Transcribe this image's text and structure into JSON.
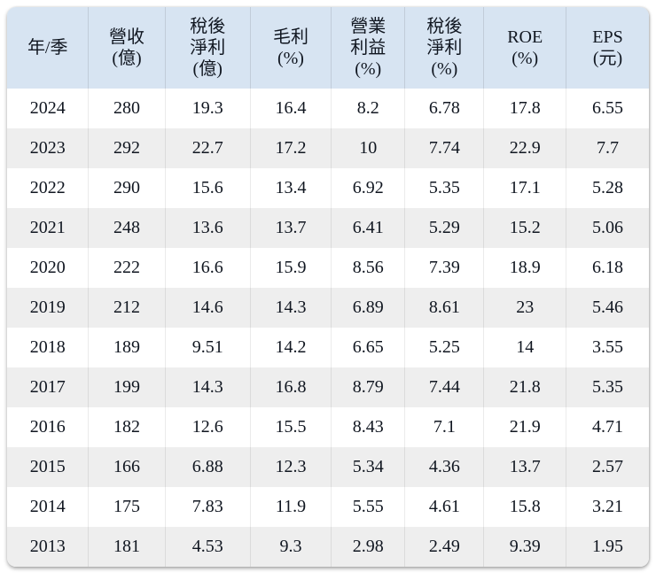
{
  "table": {
    "headers": [
      {
        "name": "year",
        "lines": [
          "年/季"
        ]
      },
      {
        "name": "revenue",
        "lines": [
          "營收",
          "(億)"
        ]
      },
      {
        "name": "net-income",
        "lines": [
          "稅後",
          "淨利",
          "(億)"
        ]
      },
      {
        "name": "gross-margin",
        "lines": [
          "毛利",
          "(%)"
        ]
      },
      {
        "name": "operating-margin",
        "lines": [
          "營業",
          "利益",
          "(%)"
        ]
      },
      {
        "name": "net-margin",
        "lines": [
          "稅後",
          "淨利",
          "(%)"
        ]
      },
      {
        "name": "roe",
        "lines": [
          "ROE",
          "(%)"
        ]
      },
      {
        "name": "eps",
        "lines": [
          "EPS",
          "(元)"
        ]
      }
    ],
    "rows": [
      [
        "2024",
        "280",
        "19.3",
        "16.4",
        "8.2",
        "6.78",
        "17.8",
        "6.55"
      ],
      [
        "2023",
        "292",
        "22.7",
        "17.2",
        "10",
        "7.74",
        "22.9",
        "7.7"
      ],
      [
        "2022",
        "290",
        "15.6",
        "13.4",
        "6.92",
        "5.35",
        "17.1",
        "5.28"
      ],
      [
        "2021",
        "248",
        "13.6",
        "13.7",
        "6.41",
        "5.29",
        "15.2",
        "5.06"
      ],
      [
        "2020",
        "222",
        "16.6",
        "15.9",
        "8.56",
        "7.39",
        "18.9",
        "6.18"
      ],
      [
        "2019",
        "212",
        "14.6",
        "14.3",
        "6.89",
        "8.61",
        "23",
        "5.46"
      ],
      [
        "2018",
        "189",
        "9.51",
        "14.2",
        "6.65",
        "5.25",
        "14",
        "3.55"
      ],
      [
        "2017",
        "199",
        "14.3",
        "16.8",
        "8.79",
        "7.44",
        "21.8",
        "5.35"
      ],
      [
        "2016",
        "182",
        "12.6",
        "15.5",
        "8.43",
        "7.1",
        "21.9",
        "4.71"
      ],
      [
        "2015",
        "166",
        "6.88",
        "12.3",
        "5.34",
        "4.36",
        "13.7",
        "2.57"
      ],
      [
        "2014",
        "175",
        "7.83",
        "11.9",
        "5.55",
        "4.61",
        "15.8",
        "3.21"
      ],
      [
        "2013",
        "181",
        "4.53",
        "9.3",
        "2.98",
        "2.49",
        "9.39",
        "1.95"
      ]
    ]
  },
  "colors": {
    "header_bg": "#d7e4f2",
    "row_alt_bg": "#eeeeee",
    "text": "#101620"
  },
  "chart_data": {
    "type": "table",
    "title": "Annual financial metrics by year",
    "columns": [
      "年/季",
      "營收(億)",
      "稅後淨利(億)",
      "毛利(%)",
      "營業利益(%)",
      "稅後淨利(%)",
      "ROE(%)",
      "EPS(元)"
    ],
    "rows": [
      [
        2024,
        280,
        19.3,
        16.4,
        8.2,
        6.78,
        17.8,
        6.55
      ],
      [
        2023,
        292,
        22.7,
        17.2,
        10,
        7.74,
        22.9,
        7.7
      ],
      [
        2022,
        290,
        15.6,
        13.4,
        6.92,
        5.35,
        17.1,
        5.28
      ],
      [
        2021,
        248,
        13.6,
        13.7,
        6.41,
        5.29,
        15.2,
        5.06
      ],
      [
        2020,
        222,
        16.6,
        15.9,
        8.56,
        7.39,
        18.9,
        6.18
      ],
      [
        2019,
        212,
        14.6,
        14.3,
        6.89,
        8.61,
        23,
        5.46
      ],
      [
        2018,
        189,
        9.51,
        14.2,
        6.65,
        5.25,
        14,
        3.55
      ],
      [
        2017,
        199,
        14.3,
        16.8,
        8.79,
        7.44,
        21.8,
        5.35
      ],
      [
        2016,
        182,
        12.6,
        15.5,
        8.43,
        7.1,
        21.9,
        4.71
      ],
      [
        2015,
        166,
        6.88,
        12.3,
        5.34,
        4.36,
        13.7,
        2.57
      ],
      [
        2014,
        175,
        7.83,
        11.9,
        5.55,
        4.61,
        15.8,
        3.21
      ],
      [
        2013,
        181,
        4.53,
        9.3,
        2.98,
        2.49,
        9.39,
        1.95
      ]
    ]
  }
}
